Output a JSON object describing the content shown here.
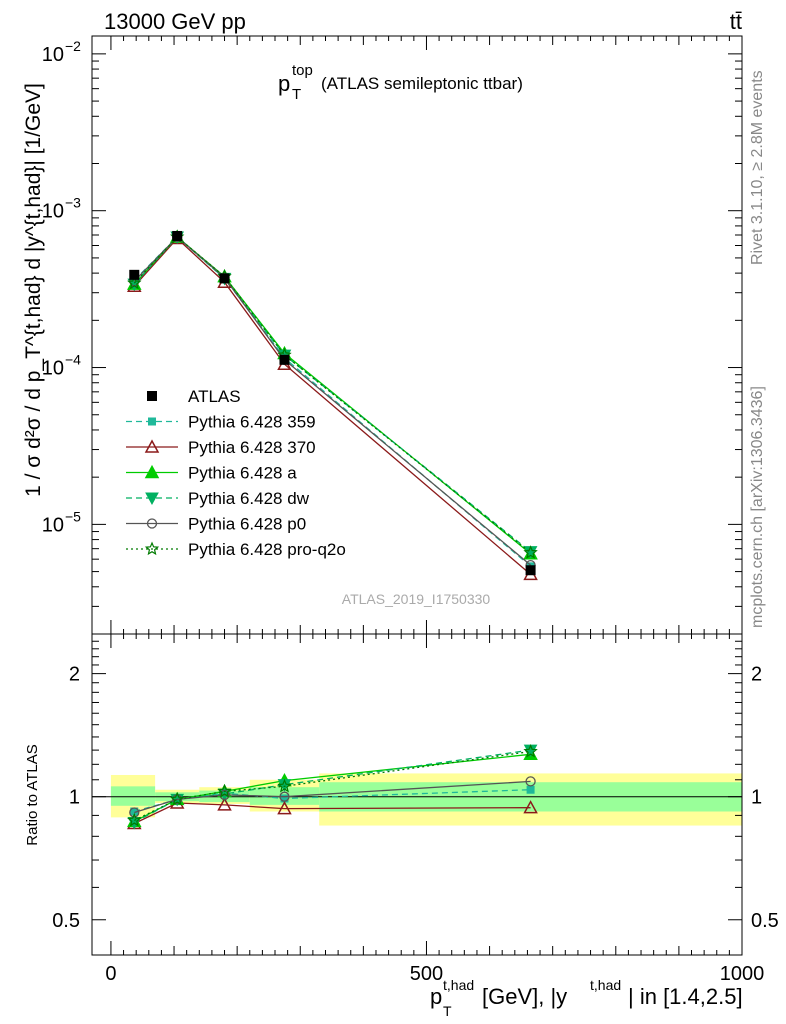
{
  "header": {
    "left": "13000 GeV pp",
    "right": "tt̄"
  },
  "side_labels": {
    "rivet": "Rivet 3.1.10, ≥ 2.8M events",
    "mcplots": "mcplots.cern.ch [arXiv:1306.3436]"
  },
  "colors": {
    "atlas": "#000000",
    "p359": "#1fb99a",
    "p370": "#8b1a1a",
    "pa": "#00cc00",
    "pdw": "#00b060",
    "pp0": "#555555",
    "pq2o": "#007a00",
    "band_inner": "#99ff99",
    "band_outer": "#ffff99"
  },
  "chart_data": [
    {
      "type": "line",
      "title_main": "p",
      "title_sup": "top",
      "title_sub": "T",
      "title_rest": "(ATLAS semileptonic ttbar)",
      "watermark": "ATLAS_2019_I1750330",
      "ylabel": "1 / σ d²σ / d p_T^{t,had} d |y^{t,had}| [1/GeV]",
      "yscale": "log",
      "ylim": [
        2e-06,
        0.013
      ],
      "xlim": [
        -30,
        1000
      ],
      "yticks": [
        {
          "value": 1e-05,
          "label": "10",
          "exp": "−5"
        },
        {
          "value": 0.0001,
          "label": "10",
          "exp": "−4"
        },
        {
          "value": 0.001,
          "label": "10",
          "exp": "−3"
        },
        {
          "value": 0.01,
          "label": "10",
          "exp": "−2"
        }
      ],
      "x": [
        37,
        105,
        180,
        275,
        665
      ],
      "data": {
        "name": "ATLAS",
        "values": [
          0.00039,
          0.00069,
          0.00037,
          0.000112,
          5.1e-06
        ]
      },
      "series": [
        {
          "name": "Pythia 6.428 359",
          "key": "p359",
          "marker": "square",
          "dash": "6,4",
          "values": [
            0.00036,
            0.00068,
            0.00037,
            0.000115,
            5.4e-06
          ]
        },
        {
          "name": "Pythia 6.428 370",
          "key": "p370",
          "marker": "triangle-open",
          "dash": "",
          "values": [
            0.00033,
            0.000665,
            0.00035,
            0.000105,
            4.8e-06
          ]
        },
        {
          "name": "Pythia 6.428 a",
          "key": "pa",
          "marker": "triangle",
          "dash": "",
          "values": [
            0.00034,
            0.00068,
            0.00038,
            0.000123,
            6.5e-06
          ]
        },
        {
          "name": "Pythia 6.428 dw",
          "key": "pdw",
          "marker": "triangle-down",
          "dash": "6,4",
          "values": [
            0.00034,
            0.00068,
            0.00037,
            0.00012,
            6.7e-06
          ]
        },
        {
          "name": "Pythia 6.428 p0",
          "key": "pp0",
          "marker": "circle-open",
          "dash": "",
          "values": [
            0.000355,
            0.00068,
            0.000375,
            0.000112,
            5.5e-06
          ]
        },
        {
          "name": "Pythia 6.428 pro-q2o",
          "key": "pq2o",
          "marker": "star-open",
          "dash": "2,3",
          "values": [
            0.000345,
            0.00068,
            0.00038,
            0.00012,
            6.6e-06
          ]
        }
      ]
    },
    {
      "type": "line",
      "ylabel": "Ratio to ATLAS",
      "xlabel_main": "p",
      "xlabel_sup": "t,had",
      "xlabel_sub": "T",
      "xlabel_rest1": " [GeV], |y",
      "xlabel_sup2": "t,had",
      "xlabel_rest2": "| in [1.4,2.5]",
      "yscale": "log",
      "ylim": [
        0.41,
        2.5
      ],
      "xlim": [
        -30,
        1000
      ],
      "yticks": [
        {
          "value": 0.5,
          "label": "0.5"
        },
        {
          "value": 1,
          "label": "1"
        },
        {
          "value": 2,
          "label": "2"
        }
      ],
      "xticks": [
        {
          "value": 0,
          "label": "0"
        },
        {
          "value": 500,
          "label": "500"
        },
        {
          "value": 1000,
          "label": "1000"
        }
      ],
      "bands": [
        {
          "x0": 0,
          "x1": 70,
          "inner": [
            0.95,
            1.06
          ],
          "outer": [
            0.89,
            1.13
          ]
        },
        {
          "x0": 70,
          "x1": 140,
          "inner": [
            0.975,
            1.025
          ],
          "outer": [
            0.965,
            1.04
          ]
        },
        {
          "x0": 140,
          "x1": 220,
          "inner": [
            0.97,
            1.035
          ],
          "outer": [
            0.96,
            1.055
          ]
        },
        {
          "x0": 220,
          "x1": 330,
          "inner": [
            0.955,
            1.055
          ],
          "outer": [
            0.92,
            1.1
          ]
        },
        {
          "x0": 330,
          "x1": 1000,
          "inner": [
            0.92,
            1.085
          ],
          "outer": [
            0.85,
            1.14
          ]
        }
      ],
      "x": [
        37,
        105,
        180,
        275,
        665
      ],
      "series": [
        {
          "key": "p359",
          "values": [
            0.92,
            0.985,
            1.02,
            0.99,
            1.04
          ]
        },
        {
          "key": "p370",
          "values": [
            0.86,
            0.965,
            0.955,
            0.935,
            0.94
          ]
        },
        {
          "key": "pa",
          "values": [
            0.87,
            0.985,
            1.03,
            1.095,
            1.27
          ]
        },
        {
          "key": "pdw",
          "values": [
            0.865,
            0.985,
            1.015,
            1.07,
            1.3
          ]
        },
        {
          "key": "pp0",
          "values": [
            0.915,
            0.985,
            1.01,
            1.0,
            1.09
          ]
        },
        {
          "key": "pq2o",
          "values": [
            0.875,
            0.985,
            1.03,
            1.06,
            1.29
          ]
        }
      ]
    }
  ]
}
